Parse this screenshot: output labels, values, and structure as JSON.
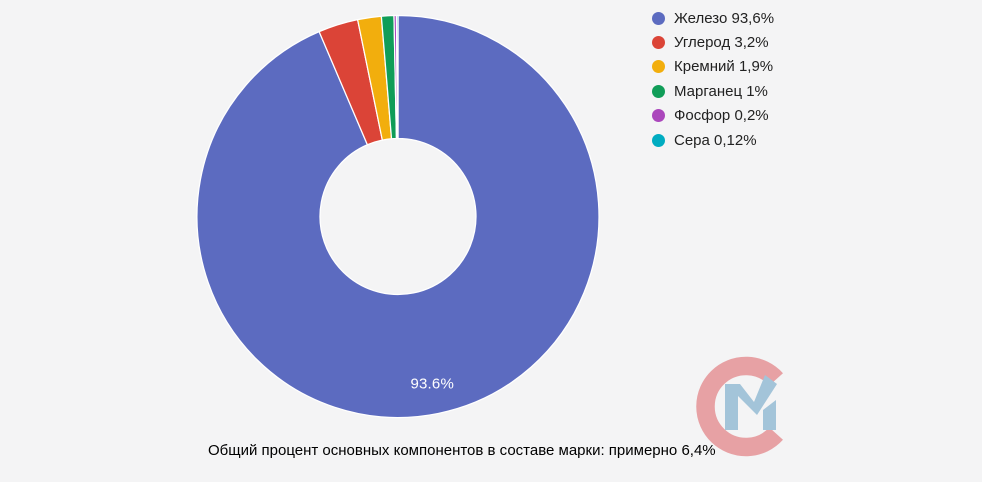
{
  "chart_data": {
    "type": "pie",
    "donut": true,
    "donut_hole_ratio": 0.39,
    "start_angle_deg": 0,
    "direction": "clockwise",
    "legend_position": "right",
    "background_color": "#F4F4F5",
    "categories": [
      "Железо",
      "Углерод",
      "Кремний",
      "Марганец",
      "Фосфор",
      "Сера"
    ],
    "values": [
      93.6,
      3.2,
      1.9,
      1,
      0.2,
      0.12
    ],
    "colors": [
      "#5C6BC0",
      "#DB4437",
      "#F2AE0D",
      "#109D58",
      "#AB47BC",
      "#00ACC1"
    ],
    "legend_labels": [
      "Железо 93,6%",
      "Углерод 3,2%",
      "Кремний 1,9%",
      "Марганец 1%",
      "Фосфор 0,2%",
      "Сера 0,12%"
    ],
    "slice_label": {
      "text": "93.6%",
      "color": "#FFFFFF",
      "slice_index": 0
    }
  },
  "caption": {
    "text": "Общий процент основных компонентов в составе марки: примерно 6,4%"
  },
  "logo": {
    "name": "СМ watermark",
    "c_color": "#E7A1A4",
    "m_color": "#A3C4D9"
  }
}
